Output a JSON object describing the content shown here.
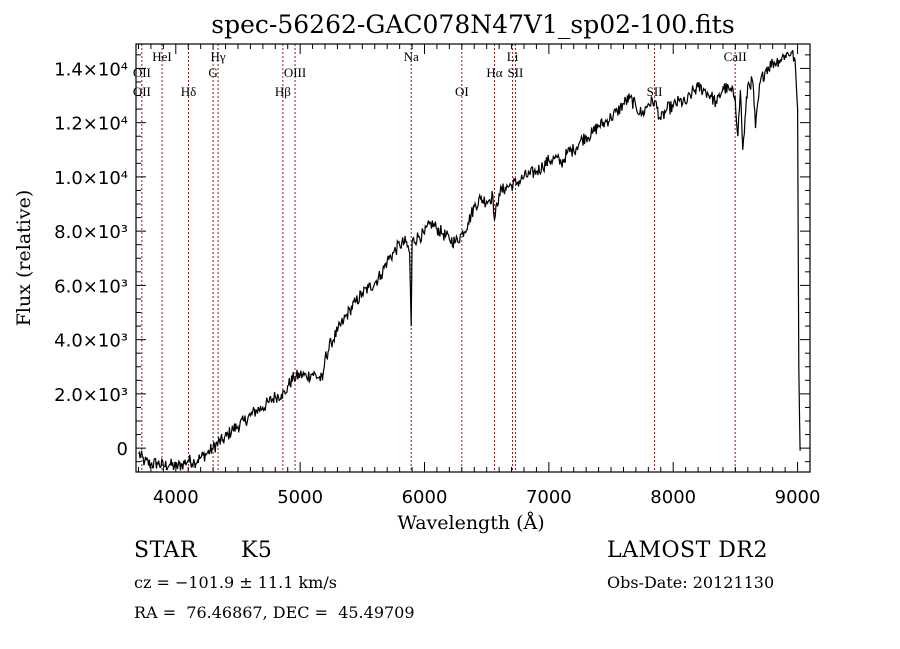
{
  "chart_data": {
    "type": "line",
    "title": "spec-56262-GAC078N47V1_sp02-100.fits",
    "xlabel": "Wavelength (Å)",
    "ylabel": "Flux (relative)",
    "xlim": [
      3680,
      9100
    ],
    "ylim": [
      -880,
      14900
    ],
    "x_ticks": [
      4000,
      5000,
      6000,
      7000,
      8000,
      9000
    ],
    "x_tick_labels": [
      "4000",
      "5000",
      "6000",
      "7000",
      "8000",
      "9000"
    ],
    "y_ticks": [
      0,
      2000,
      4000,
      6000,
      8000,
      10000,
      12000,
      14000
    ],
    "y_tick_labels": [
      "0",
      "2.0×10³",
      "4.0×10³",
      "6.0×10³",
      "8.0×10³",
      "1.0×10⁴",
      "1.2×10⁴",
      "1.4×10⁴"
    ],
    "grid": false,
    "line_color": "#000000",
    "marker_line_color": "#8b1a1a",
    "spectral_lines": [
      {
        "name": "OII",
        "wavelength": 3727,
        "label_row": 2
      },
      {
        "name": "OII",
        "wavelength": 3727,
        "label_row": 3
      },
      {
        "name": "HeI",
        "wavelength": 3889,
        "label_row": 1
      },
      {
        "name": "Hδ",
        "wavelength": 4102,
        "label_row": 3
      },
      {
        "name": "G",
        "wavelength": 4300,
        "label_row": 2
      },
      {
        "name": "Hγ",
        "wavelength": 4340,
        "label_row": 1
      },
      {
        "name": "Hβ",
        "wavelength": 4861,
        "label_row": 3
      },
      {
        "name": "OIII",
        "wavelength": 4959,
        "label_row": 2
      },
      {
        "name": "Na",
        "wavelength": 5893,
        "label_row": 1
      },
      {
        "name": "OI",
        "wavelength": 6300,
        "label_row": 3
      },
      {
        "name": "Hα",
        "wavelength": 6563,
        "label_row": 2
      },
      {
        "name": "Li",
        "wavelength": 6708,
        "label_row": 1
      },
      {
        "name": "SII",
        "wavelength": 6731,
        "label_row": 2
      },
      {
        "name": "SII",
        "wavelength": 7850,
        "label_row": 3
      },
      {
        "name": "CaII",
        "wavelength": 8498,
        "label_row": 1
      }
    ],
    "series": [
      {
        "name": "flux",
        "x": [
          3700,
          3750,
          3800,
          3850,
          3900,
          3950,
          4000,
          4050,
          4100,
          4150,
          4200,
          4250,
          4300,
          4340,
          4380,
          4420,
          4460,
          4500,
          4550,
          4600,
          4650,
          4700,
          4750,
          4800,
          4850,
          4880,
          4900,
          4950,
          5000,
          5050,
          5100,
          5150,
          5180,
          5200,
          5250,
          5300,
          5350,
          5400,
          5450,
          5500,
          5550,
          5600,
          5650,
          5700,
          5750,
          5800,
          5850,
          5880,
          5893,
          5900,
          5950,
          6000,
          6050,
          6100,
          6150,
          6200,
          6250,
          6300,
          6350,
          6400,
          6450,
          6500,
          6550,
          6563,
          6600,
          6650,
          6700,
          6750,
          6800,
          6850,
          6900,
          6950,
          7000,
          7050,
          7100,
          7150,
          7200,
          7250,
          7300,
          7350,
          7400,
          7450,
          7500,
          7550,
          7600,
          7650,
          7700,
          7750,
          7800,
          7850,
          7900,
          7950,
          8000,
          8050,
          8100,
          8150,
          8200,
          8250,
          8300,
          8350,
          8400,
          8450,
          8498,
          8520,
          8540,
          8560,
          8600,
          8640,
          8662,
          8700,
          8750,
          8800,
          8850,
          8900,
          8950,
          8980,
          9000,
          9010,
          9020
        ],
        "y": [
          -200,
          -500,
          -600,
          -550,
          -650,
          -600,
          -700,
          -600,
          -450,
          -500,
          -350,
          -200,
          0,
          200,
          300,
          500,
          700,
          800,
          1000,
          1200,
          1400,
          1500,
          1700,
          1900,
          2000,
          2000,
          2300,
          2600,
          2700,
          2650,
          2750,
          2600,
          2500,
          3300,
          3900,
          4300,
          4700,
          5100,
          5400,
          5700,
          5900,
          6100,
          6400,
          6900,
          7200,
          7500,
          7600,
          7200,
          4500,
          7600,
          7800,
          7900,
          8300,
          8100,
          7900,
          7700,
          7600,
          7900,
          8300,
          8900,
          9200,
          9100,
          9300,
          8400,
          9400,
          9600,
          9700,
          9800,
          10000,
          10100,
          10200,
          10400,
          10600,
          10700,
          10500,
          10900,
          11000,
          11300,
          11500,
          11600,
          11900,
          12000,
          12200,
          12400,
          12700,
          12900,
          12600,
          12300,
          12700,
          12800,
          12100,
          12500,
          12600,
          12800,
          12700,
          13100,
          13300,
          13200,
          13000,
          12700,
          13300,
          13200,
          13000,
          11500,
          13200,
          11000,
          13400,
          13500,
          11800,
          13500,
          14000,
          14200,
          14300,
          14500,
          14600,
          14300,
          12500,
          3000,
          -100
        ]
      }
    ]
  },
  "info": {
    "object_class": "STAR",
    "subclass": "K5",
    "redshift_line": "cz = −101.9 ± 11.1 km/s",
    "coords_line": "RA =  76.46867, DEC =  45.49709",
    "survey": "LAMOST DR2",
    "obs_date": "Obs-Date: 20121130"
  }
}
